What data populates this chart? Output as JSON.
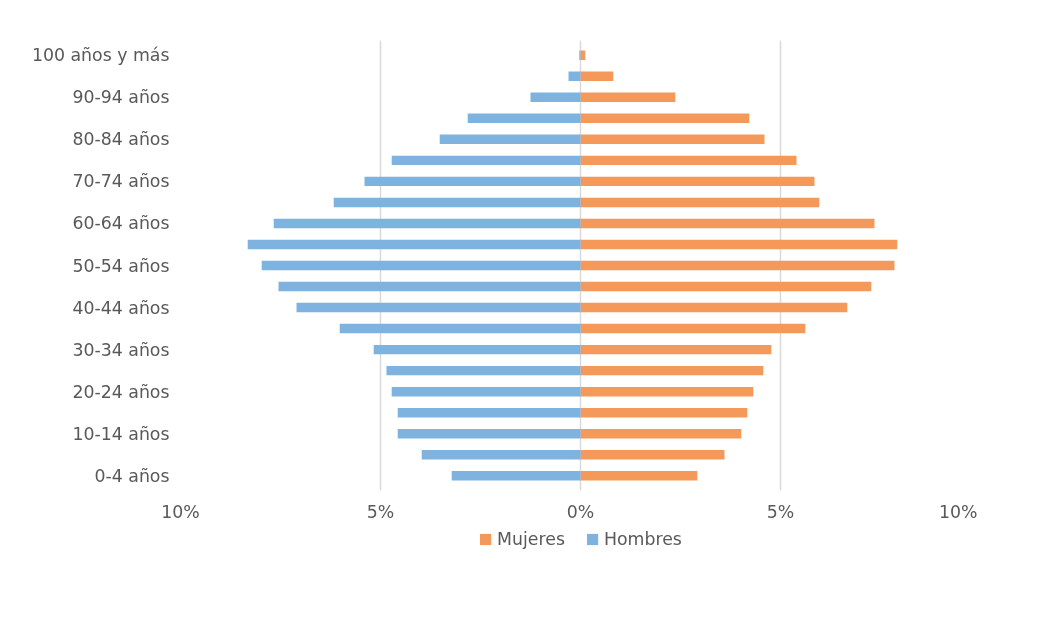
{
  "chart_data": {
    "type": "bar",
    "orientation": "horizontal",
    "categories": [
      "100 años y más",
      null,
      "90-94 años",
      null,
      "80-84 años",
      null,
      "70-74 años",
      null,
      "60-64 años",
      null,
      "50-54 años",
      null,
      "40-44 años",
      null,
      "30-34 años",
      null,
      "20-24 años",
      null,
      "10-14 años",
      null,
      "0-4 años"
    ],
    "series": [
      {
        "name": "Mujeres",
        "color": "#f4995a",
        "values": [
          0.12,
          0.82,
          2.37,
          4.22,
          4.6,
          5.4,
          5.85,
          5.97,
          7.35,
          7.92,
          7.85,
          7.27,
          6.67,
          5.62,
          4.77,
          4.57,
          4.32,
          4.17,
          4.02,
          3.6,
          2.92
        ]
      },
      {
        "name": "Hombres",
        "color": "#7eb3e0",
        "values": [
          -0.03,
          -0.3,
          -1.25,
          -2.82,
          -3.52,
          -4.72,
          -5.4,
          -6.17,
          -7.67,
          -8.32,
          -7.97,
          -7.55,
          -7.1,
          -6.02,
          -5.17,
          -4.85,
          -4.72,
          -4.57,
          -4.57,
          -3.97,
          -3.22
        ]
      }
    ],
    "xlim": [
      -10,
      10
    ],
    "xticks": [
      {
        "value": -10,
        "label": "10%"
      },
      {
        "value": -5,
        "label": "5%"
      },
      {
        "value": 0,
        "label": "0%"
      },
      {
        "value": 5,
        "label": "5%"
      },
      {
        "value": 10,
        "label": "10%"
      }
    ],
    "grid": "x",
    "legend": "bottom",
    "stacked": true
  }
}
